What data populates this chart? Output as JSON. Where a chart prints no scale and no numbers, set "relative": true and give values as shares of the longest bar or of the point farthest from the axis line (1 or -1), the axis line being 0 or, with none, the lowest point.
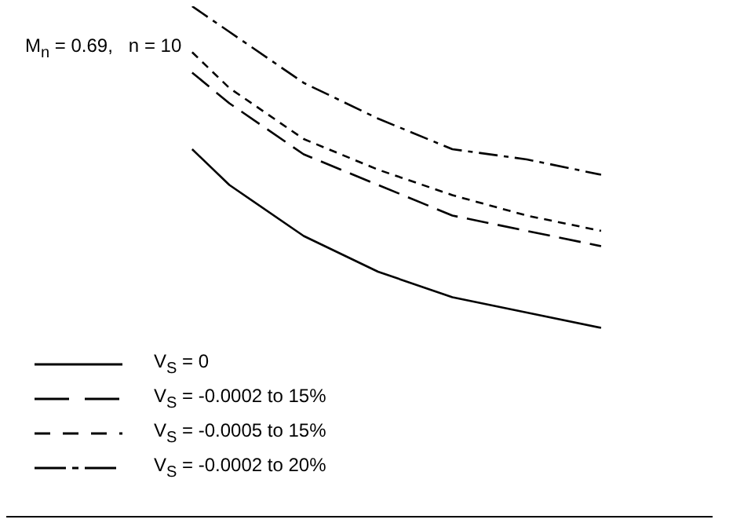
{
  "chart_data": {
    "type": "line",
    "relative": true,
    "categories": [
      null,
      null,
      null,
      null,
      null,
      null,
      null,
      null,
      null,
      null,
      null,
      null,
      null,
      null,
      null,
      null,
      null,
      null,
      null,
      null
    ],
    "series": [
      {
        "name": "V$_{S}$ = 0",
        "color": "#000000",
        "line_style": "solid",
        "values": [
          null,
          null,
          null,
          null,
          null,
          0.72,
          0.65,
          null,
          0.55,
          null,
          0.48,
          null,
          0.43,
          null,
          0.4,
          null,
          0.37,
          null,
          null,
          null
        ]
      },
      {
        "name": "V$_{S}$ = -0.0002 to 15%",
        "color": "#000000",
        "line_style": "dashed",
        "values": [
          null,
          null,
          null,
          null,
          null,
          0.87,
          0.81,
          null,
          0.71,
          null,
          0.65,
          null,
          0.59,
          null,
          0.56,
          null,
          0.53,
          null,
          null,
          null
        ]
      },
      {
        "name": "V$_{S}$ = -0.0005 to 15%",
        "color": "#000000",
        "line_style": "dotted",
        "values": [
          null,
          null,
          null,
          null,
          null,
          0.91,
          0.84,
          null,
          0.74,
          null,
          0.68,
          null,
          0.63,
          null,
          0.59,
          null,
          0.56,
          null,
          null,
          null
        ]
      },
      {
        "name": "V$_{S}$ = -0.0002 to 20%",
        "color": "#000000",
        "line_style": "dashdot",
        "values": [
          null,
          null,
          null,
          null,
          null,
          1,
          0.95,
          null,
          0.85,
          null,
          0.78,
          null,
          0.72,
          null,
          0.7,
          null,
          0.67,
          null,
          null,
          null
        ]
      }
    ],
    "annotations": [
      "M$_{n}$ = 0.69,   n = 10"
    ],
    "legend": "bottom left",
    "grid": false,
    "marker": "none"
  }
}
